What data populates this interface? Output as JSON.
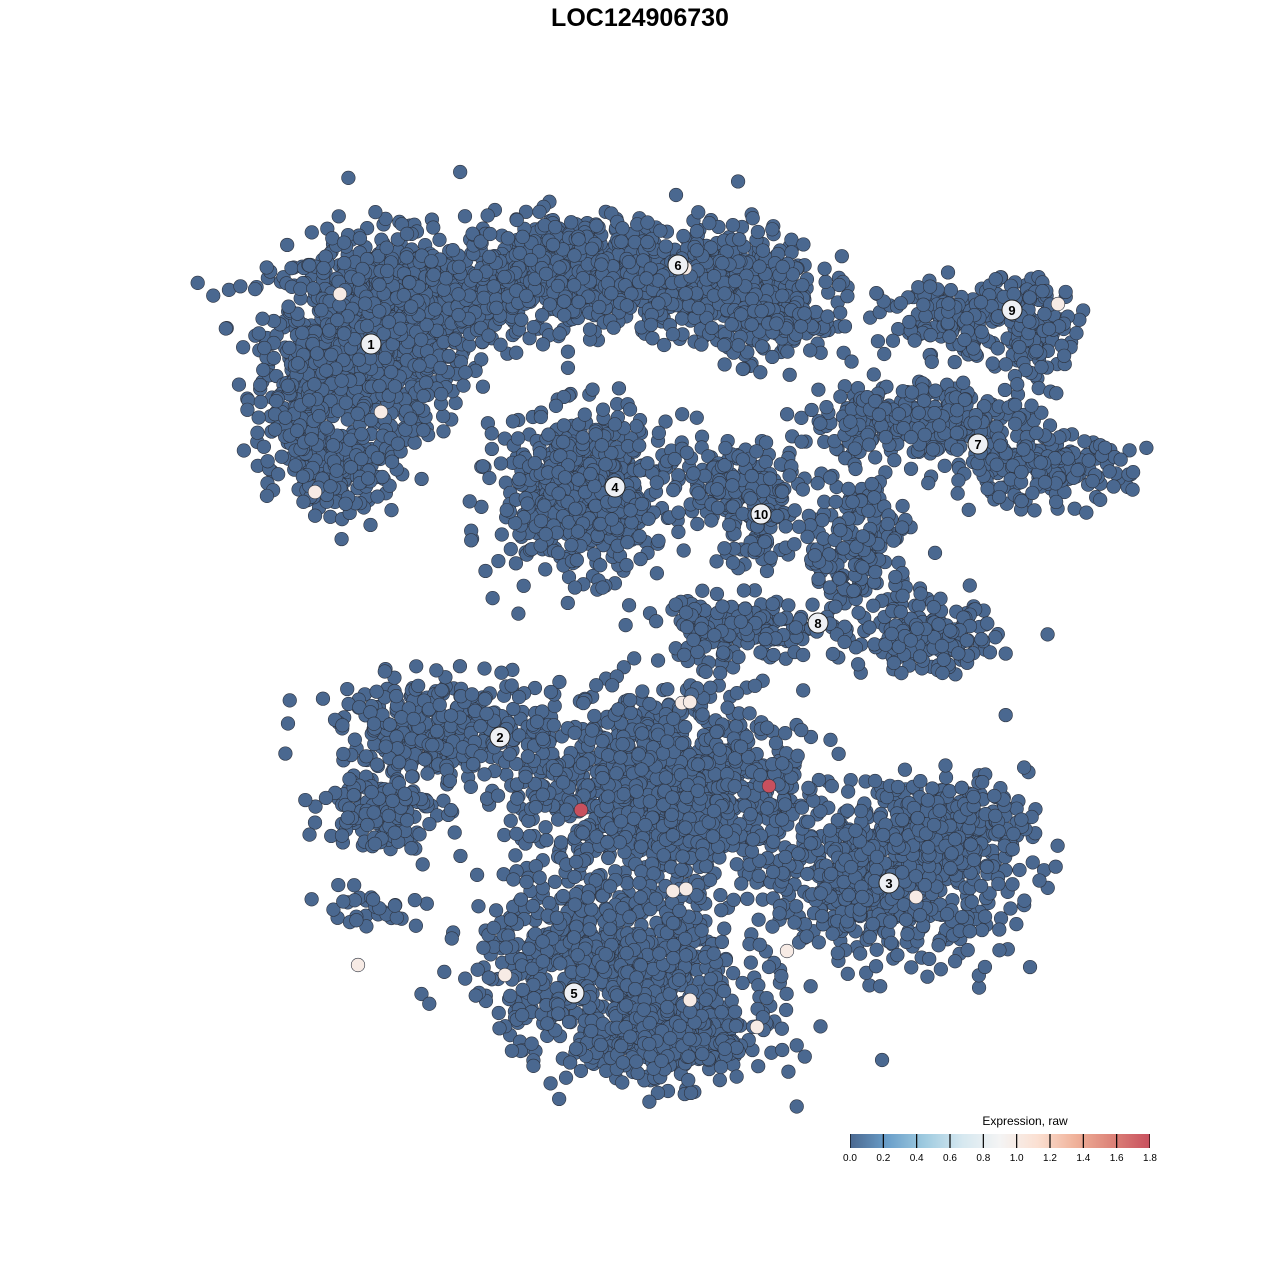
{
  "chart_data": {
    "type": "scatter",
    "title": "LOC124906730",
    "xlabel": "",
    "ylabel": "",
    "axes_visible": false,
    "grid": false,
    "point_default_value": 0.0,
    "clusters": [
      {
        "label": "1",
        "label_pos": [
          -26.9,
          29.6
        ],
        "blobs": [
          [
            -27,
            30,
            9,
            9,
            900
          ],
          [
            -22,
            34,
            10,
            5,
            350
          ],
          [
            -30,
            17,
            5,
            4,
            200
          ],
          [
            -34,
            24,
            4,
            6,
            150
          ]
        ]
      },
      {
        "label": "6",
        "label_pos": [
          3.8,
          37.5
        ],
        "blobs": [
          [
            -6,
            37,
            11,
            5,
            650
          ],
          [
            8,
            36,
            9,
            5,
            450
          ],
          [
            14,
            31,
            5,
            3,
            120
          ]
        ]
      },
      {
        "label": "4",
        "label_pos": [
          -2.5,
          15.3
        ],
        "blobs": [
          [
            -5.5,
            14.5,
            7.5,
            7,
            650
          ]
        ]
      },
      {
        "label": "9",
        "label_pos": [
          37.2,
          33.0
        ],
        "blobs": [
          [
            33,
            32,
            8,
            3.5,
            200
          ],
          [
            40,
            31,
            3,
            5,
            80
          ]
        ]
      },
      {
        "label": "7",
        "label_pos": [
          33.8,
          19.6
        ],
        "blobs": [
          [
            28,
            22,
            10,
            3.5,
            300
          ],
          [
            40,
            17,
            8,
            3,
            200
          ]
        ]
      },
      {
        "label": "10",
        "label_pos": [
          12.1,
          12.6
        ],
        "blobs": [
          [
            10,
            16,
            7,
            4,
            160
          ],
          [
            12,
            11,
            3,
            4,
            60
          ]
        ]
      },
      {
        "label": "8",
        "label_pos": [
          17.8,
          1.7
        ],
        "blobs": [
          [
            22,
            9,
            5,
            7,
            200
          ],
          [
            29,
            0,
            6,
            3,
            180
          ],
          [
            10,
            1,
            9,
            3,
            160
          ]
        ]
      },
      {
        "label": "2",
        "label_pos": [
          -14.0,
          -9.7
        ],
        "blobs": [
          [
            -20,
            -9,
            9,
            4.5,
            350
          ],
          [
            -26,
            -17,
            5,
            3.5,
            150
          ],
          [
            -28,
            -27,
            6,
            2,
            30
          ]
        ]
      },
      {
        "label": "3",
        "label_pos": [
          24.9,
          -24.3
        ],
        "blobs": [
          [
            25,
            -24,
            11,
            7,
            650
          ],
          [
            31,
            -18,
            7,
            4,
            200
          ]
        ]
      },
      {
        "label": "5",
        "label_pos": [
          -6.6,
          -35.3
        ],
        "blobs": [
          [
            2,
            -15,
            13,
            9,
            1200
          ],
          [
            -3,
            -32,
            12,
            7,
            700
          ],
          [
            3,
            -40,
            9,
            4,
            400
          ]
        ]
      }
    ],
    "highlighted_points": [
      {
        "x": -30.0,
        "y": 34.6,
        "value": 1.0
      },
      {
        "x": -25.9,
        "y": 22.8,
        "value": 1.0
      },
      {
        "x": -32.5,
        "y": 14.8,
        "value": 1.0
      },
      {
        "x": 4.5,
        "y": 37.2,
        "value": 1.0
      },
      {
        "x": 41.8,
        "y": 33.6,
        "value": 1.0
      },
      {
        "x": 4.2,
        "y": -6.3,
        "value": 1.0
      },
      {
        "x": 5.0,
        "y": -6.2,
        "value": 1.0
      },
      {
        "x": 3.3,
        "y": -25.1,
        "value": 1.0
      },
      {
        "x": 4.6,
        "y": -24.9,
        "value": 1.0
      },
      {
        "x": 27.6,
        "y": -25.7,
        "value": 1.0
      },
      {
        "x": 14.7,
        "y": -31.1,
        "value": 1.0
      },
      {
        "x": -13.5,
        "y": -33.5,
        "value": 1.0
      },
      {
        "x": -28.2,
        "y": -32.5,
        "value": 1.0
      },
      {
        "x": 5.0,
        "y": -36.0,
        "value": 1.0
      },
      {
        "x": 11.7,
        "y": -38.7,
        "value": 1.0
      },
      {
        "x": -5.9,
        "y": -17.0,
        "value": 1.8
      },
      {
        "x": 12.9,
        "y": -14.6,
        "value": 1.8
      }
    ],
    "colorbar": {
      "title": "Expression, raw",
      "range": [
        0.0,
        1.8
      ],
      "ticks": [
        "0.0",
        "0.2",
        "0.4",
        "0.6",
        "0.8",
        "1.0",
        "1.2",
        "1.4",
        "1.6",
        "1.8"
      ],
      "colors": [
        "#4a6890",
        "#6a9fca",
        "#9fcbe0",
        "#d6e8f0",
        "#f4f4f4",
        "#fbe0d2",
        "#f0b29a",
        "#dc8278",
        "#c8505e"
      ],
      "position": "bottom-right"
    }
  }
}
